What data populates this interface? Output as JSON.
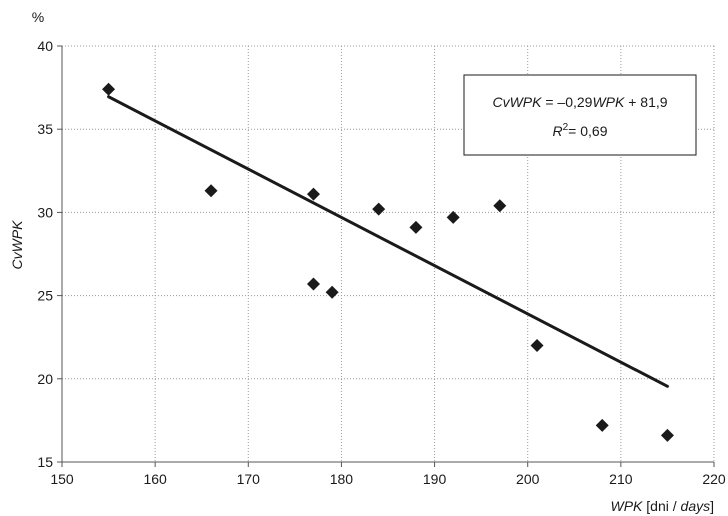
{
  "chart_data": {
    "type": "scatter",
    "y_unit": "%",
    "xlabel": {
      "main": "WPK",
      "unit_prefix": " [dni / ",
      "unit_italic": "days",
      "unit_suffix": "]"
    },
    "ylabel": "CvWPK",
    "xlim": [
      150,
      220
    ],
    "ylim": [
      15,
      40
    ],
    "x_ticks": [
      150,
      160,
      170,
      180,
      190,
      200,
      210,
      220
    ],
    "y_ticks": [
      15,
      20,
      25,
      30,
      35,
      40
    ],
    "grid": "dotted",
    "points": [
      {
        "x": 155,
        "y": 37.4
      },
      {
        "x": 166,
        "y": 31.3
      },
      {
        "x": 177,
        "y": 31.1
      },
      {
        "x": 177,
        "y": 25.7
      },
      {
        "x": 179,
        "y": 25.2
      },
      {
        "x": 184,
        "y": 30.2
      },
      {
        "x": 188,
        "y": 29.1
      },
      {
        "x": 192,
        "y": 29.7
      },
      {
        "x": 197,
        "y": 30.4
      },
      {
        "x": 201,
        "y": 22.0
      },
      {
        "x": 208,
        "y": 17.2
      },
      {
        "x": 215,
        "y": 16.6
      }
    ],
    "trendline": {
      "slope": -0.29,
      "intercept": 81.9,
      "x_from": 155,
      "x_to": 215
    },
    "equation": {
      "line1": {
        "lhs": "CvWPK",
        "middle": " = –0,29",
        "var": "WPK",
        "rhs": " + 81,9"
      },
      "line2": {
        "r": "R",
        "sup": "2",
        "rest": "= 0,69"
      }
    },
    "colors": {
      "marker": "#1a1a1a",
      "trendline": "#1a1a1a",
      "grid": "#9a9a9a",
      "axis": "#555555"
    }
  }
}
